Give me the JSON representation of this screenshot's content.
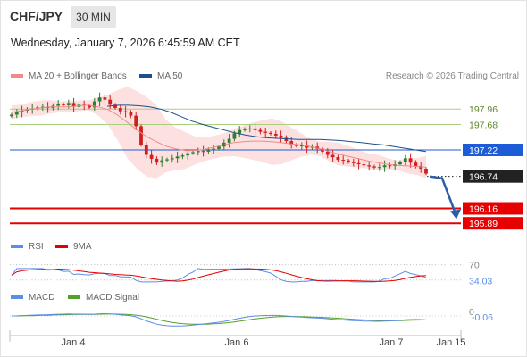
{
  "header": {
    "pair": "CHF/JPY",
    "timeframe": "30 MIN",
    "datetime": "Wednesday, January 7, 2026 6:45:59 AM CET"
  },
  "legend": {
    "ma20": "MA 20 + Bollinger Bands",
    "ma50": "MA 50",
    "credit": "Research © 2026 Trading Central"
  },
  "rsi_legend": {
    "rsi": "RSI",
    "ma9": "9MA"
  },
  "macd_legend": {
    "macd": "MACD",
    "signal": "MACD Signal"
  },
  "colors": {
    "ma20": "#f28a8a",
    "band_fill": "#fde0e0",
    "ma50": "#1f4e8c",
    "up": "#2f7d2f",
    "down": "#d11f1f",
    "level_green": "#a8d080",
    "pivot_blue": "#1e5bd6",
    "support_red": "#e60000",
    "current_dark": "#222222",
    "rsi": "#5b8ee6",
    "ma9": "#e60000",
    "macd": "#5b8ee6",
    "signal": "#55a02a",
    "arrow": "#2a5ea8"
  },
  "chart_data": {
    "type": "candlestick",
    "title": "CHF/JPY",
    "timeframe": "30 MIN",
    "x_ticks": [
      "Jan 4",
      "Jan 6",
      "Jan 7",
      "Jan 15"
    ],
    "price_axis_range": [
      195.7,
      198.4
    ],
    "levels": [
      {
        "value": 197.96,
        "label": "197.96",
        "kind": "resistance"
      },
      {
        "value": 197.68,
        "label": "197.68",
        "kind": "resistance"
      },
      {
        "value": 197.22,
        "label": "197.22",
        "kind": "pivot"
      },
      {
        "value": 196.74,
        "label": "196.74",
        "kind": "current"
      },
      {
        "value": 196.16,
        "label": "196.16",
        "kind": "support"
      },
      {
        "value": 195.89,
        "label": "195.89",
        "kind": "support"
      }
    ],
    "forecast": {
      "from": 196.74,
      "to": 196.16,
      "direction": "down"
    },
    "close_series": [
      197.86,
      197.9,
      197.93,
      197.95,
      197.97,
      197.99,
      198.0,
      197.98,
      198.02,
      198.05,
      198.03,
      198.07,
      198.0,
      198.04,
      198.02,
      197.99,
      198.1,
      198.17,
      198.13,
      198.04,
      197.98,
      197.92,
      197.9,
      197.84,
      197.65,
      197.31,
      197.13,
      197.06,
      196.99,
      197.03,
      197.05,
      197.07,
      197.1,
      197.12,
      197.16,
      197.18,
      197.2,
      197.19,
      197.22,
      197.24,
      197.28,
      197.35,
      197.42,
      197.52,
      197.58,
      197.6,
      197.61,
      197.58,
      197.55,
      197.53,
      197.51,
      197.48,
      197.44,
      197.38,
      197.32,
      197.29,
      197.3,
      197.26,
      197.28,
      197.24,
      197.19,
      197.13,
      197.09,
      197.04,
      197.03,
      197.0,
      196.98,
      196.96,
      196.94,
      196.92,
      196.9,
      196.91,
      196.94,
      196.93,
      196.96,
      197.0,
      197.07,
      196.99,
      196.93,
      196.88,
      196.79
    ],
    "ma20_series": [
      197.9,
      197.93,
      197.96,
      197.98,
      198.0,
      198.0,
      198.0,
      198.02,
      198.03,
      198.0,
      197.95,
      197.85,
      197.72,
      197.58,
      197.46,
      197.37,
      197.29,
      197.24,
      197.21,
      197.21,
      197.23,
      197.27,
      197.31,
      197.35,
      197.37,
      197.38,
      197.38,
      197.37,
      197.35,
      197.33,
      197.31,
      197.28,
      197.24,
      197.19,
      197.14,
      197.1,
      197.06,
      197.02,
      196.99,
      196.96,
      196.94,
      196.93,
      196.92,
      196.91
    ],
    "ma50_series": [
      198.01,
      198.03,
      198.03,
      198.02,
      198.0,
      197.96,
      197.9,
      197.82,
      197.74,
      197.68,
      197.63,
      197.58,
      197.53,
      197.49,
      197.46,
      197.44,
      197.43,
      197.42,
      197.41,
      197.41,
      197.41,
      197.4,
      197.39,
      197.37,
      197.35,
      197.33,
      197.31,
      197.28,
      197.25,
      197.22,
      197.19
    ],
    "rsi": {
      "levels": [
        70
      ],
      "last": 34.03,
      "last_label": "34.03",
      "level_label": "70"
    },
    "macd": {
      "last": -0.06,
      "last_label": "-0.06",
      "zero_label": "0"
    }
  }
}
